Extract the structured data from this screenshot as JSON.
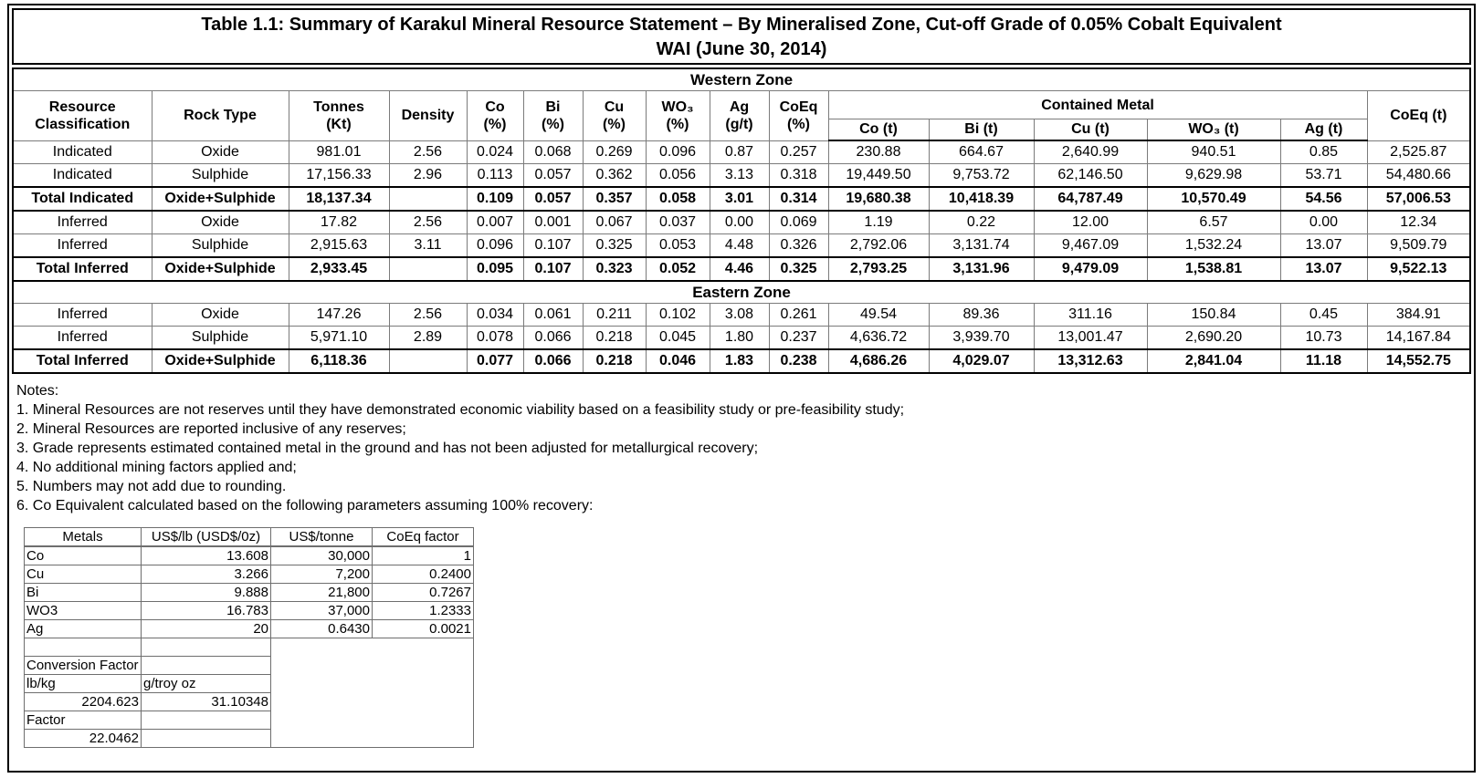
{
  "title": {
    "line1": "Table 1.1: Summary of Karakul Mineral Resource Statement – By Mineralised Zone, Cut-off Grade of 0.05% Cobalt Equivalent",
    "line2": "WAI (June 30, 2014)"
  },
  "main_table": {
    "header_row1": [
      "Resource\nClassification",
      "Rock Type",
      "Tonnes\n(Kt)",
      "Density",
      "Co\n(%)",
      "Bi\n(%)",
      "Cu\n(%)",
      "WO₃\n(%)",
      "Ag\n(g/t)",
      "CoEq\n(%)",
      "Contained Metal",
      "CoEq (t)"
    ],
    "header_row2": [
      "Co (t)",
      "Bi (t)",
      "Cu (t)",
      "WO₃ (t)",
      "Ag (t)"
    ],
    "zones": [
      {
        "label": "Western Zone",
        "rows": [
          {
            "bold": false,
            "cells": [
              "Indicated",
              "Oxide",
              "981.01",
              "2.56",
              "0.024",
              "0.068",
              "0.269",
              "0.096",
              "0.87",
              "0.257",
              "230.88",
              "664.67",
              "2,640.99",
              "940.51",
              "0.85",
              "2,525.87"
            ]
          },
          {
            "bold": false,
            "cells": [
              "Indicated",
              "Sulphide",
              "17,156.33",
              "2.96",
              "0.113",
              "0.057",
              "0.362",
              "0.056",
              "3.13",
              "0.318",
              "19,449.50",
              "9,753.72",
              "62,146.50",
              "9,629.98",
              "53.71",
              "54,480.66"
            ]
          },
          {
            "bold": true,
            "cells": [
              "Total Indicated",
              "Oxide+Sulphide",
              "18,137.34",
              "",
              "0.109",
              "0.057",
              "0.357",
              "0.058",
              "3.01",
              "0.314",
              "19,680.38",
              "10,418.39",
              "64,787.49",
              "10,570.49",
              "54.56",
              "57,006.53"
            ]
          },
          {
            "bold": false,
            "cells": [
              "Inferred",
              "Oxide",
              "17.82",
              "2.56",
              "0.007",
              "0.001",
              "0.067",
              "0.037",
              "0.00",
              "0.069",
              "1.19",
              "0.22",
              "12.00",
              "6.57",
              "0.00",
              "12.34"
            ]
          },
          {
            "bold": false,
            "cells": [
              "Inferred",
              "Sulphide",
              "2,915.63",
              "3.11",
              "0.096",
              "0.107",
              "0.325",
              "0.053",
              "4.48",
              "0.326",
              "2,792.06",
              "3,131.74",
              "9,467.09",
              "1,532.24",
              "13.07",
              "9,509.79"
            ]
          },
          {
            "bold": true,
            "cells": [
              "Total Inferred",
              "Oxide+Sulphide",
              "2,933.45",
              "",
              "0.095",
              "0.107",
              "0.323",
              "0.052",
              "4.46",
              "0.325",
              "2,793.25",
              "3,131.96",
              "9,479.09",
              "1,538.81",
              "13.07",
              "9,522.13"
            ]
          }
        ]
      },
      {
        "label": "Eastern Zone",
        "rows": [
          {
            "bold": false,
            "cells": [
              "Inferred",
              "Oxide",
              "147.26",
              "2.56",
              "0.034",
              "0.061",
              "0.211",
              "0.102",
              "3.08",
              "0.261",
              "49.54",
              "89.36",
              "311.16",
              "150.84",
              "0.45",
              "384.91"
            ]
          },
          {
            "bold": false,
            "cells": [
              "Inferred",
              "Sulphide",
              "5,971.10",
              "2.89",
              "0.078",
              "0.066",
              "0.218",
              "0.045",
              "1.80",
              "0.237",
              "4,636.72",
              "3,939.70",
              "13,001.47",
              "2,690.20",
              "10.73",
              "14,167.84"
            ]
          },
          {
            "bold": true,
            "cells": [
              "Total Inferred",
              "Oxide+Sulphide",
              "6,118.36",
              "",
              "0.077",
              "0.066",
              "0.218",
              "0.046",
              "1.83",
              "0.238",
              "4,686.26",
              "4,029.07",
              "13,312.63",
              "2,841.04",
              "11.18",
              "14,552.75"
            ]
          }
        ]
      }
    ]
  },
  "notes": {
    "title": "Notes:",
    "lines": [
      "1. Mineral Resources are not reserves until they have demonstrated economic viability based on a feasibility study or pre-feasibility study;",
      "2. Mineral Resources are reported inclusive of any reserves;",
      "3. Grade represents estimated contained metal in the ground and has not been adjusted for metallurgical recovery;",
      "4. No additional mining factors applied and;",
      "5. Numbers may not add due to rounding.",
      "6. Co Equivalent calculated based on the following parameters assuming 100% recovery:"
    ]
  },
  "params_table": {
    "headers": [
      "Metals",
      "US$/lb (USD$/0z)",
      "US$/tonne",
      "CoEq factor"
    ],
    "metal_rows": [
      [
        "Co",
        "13.608",
        "30,000",
        "1"
      ],
      [
        "Cu",
        "3.266",
        "7,200",
        "0.2400"
      ],
      [
        "Bi",
        "9.888",
        "21,800",
        "0.7267"
      ],
      [
        "WO3",
        "16.783",
        "37,000",
        "1.2333"
      ],
      [
        "Ag",
        "20",
        "0.6430",
        "0.0021"
      ]
    ],
    "extra_rows": [
      [
        "",
        ""
      ],
      [
        "Conversion Factor",
        ""
      ],
      [
        "lb/kg",
        "g/troy oz"
      ],
      [
        "2204.623",
        "31.10348"
      ],
      [
        "Factor",
        ""
      ],
      [
        "22.0462",
        ""
      ]
    ]
  },
  "colors": {
    "background": "#ffffff",
    "text": "#000000",
    "border_dark": "#000000",
    "border_grid": "#7b7b7b"
  }
}
